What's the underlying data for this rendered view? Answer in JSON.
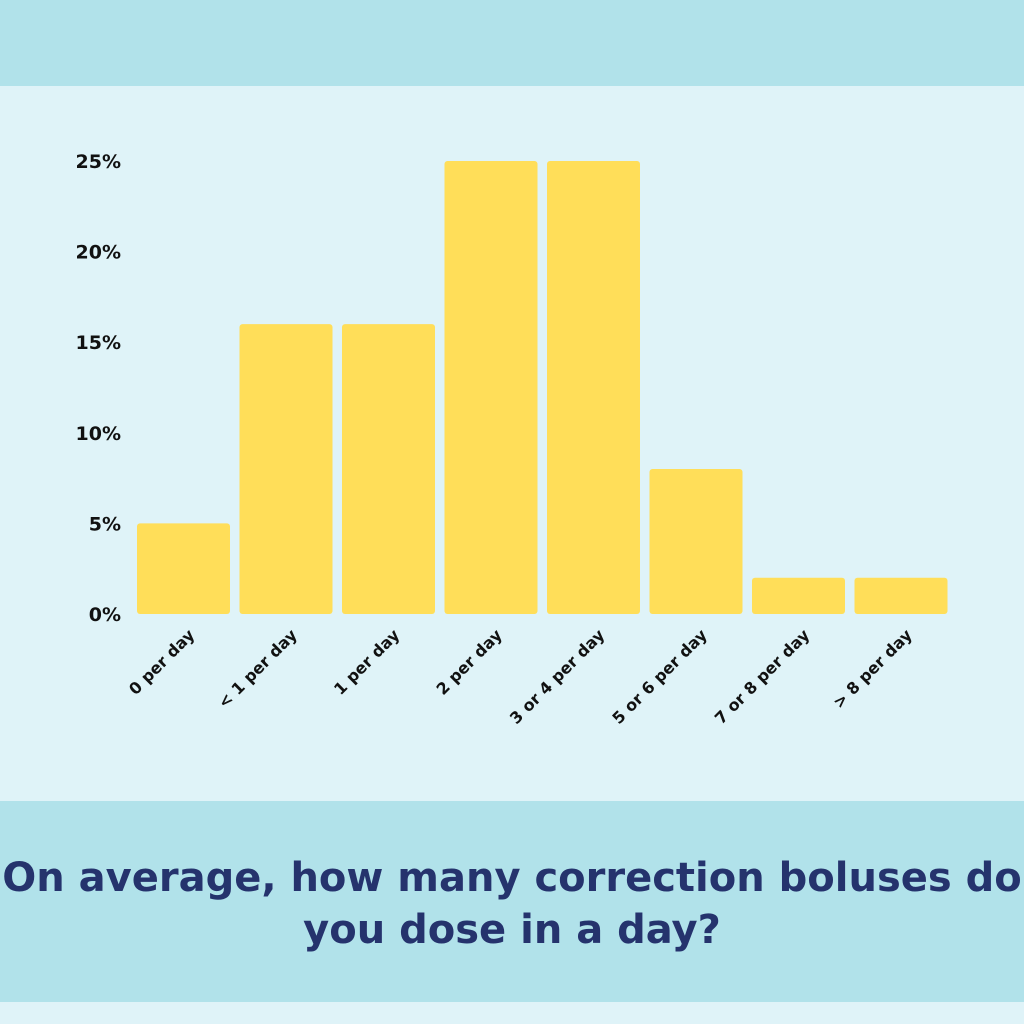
{
  "colors": {
    "background": "#dff3f8",
    "band": "#b1e2ea",
    "bar": "#ffde59",
    "title": "#25336d",
    "axis_text": "#111111"
  },
  "chart_data": {
    "type": "bar",
    "title": "On average, how many correction boluses do you dose in a day?",
    "xlabel": "",
    "ylabel": "",
    "categories": [
      "0 per day",
      "< 1 per day",
      "1 per day",
      "2 per day",
      "3 or 4 per day",
      "5 or 6 per day",
      "7 or 8 per day",
      "> 8 per day"
    ],
    "values": [
      5,
      16,
      16,
      25,
      25,
      8,
      2,
      2
    ],
    "ylim": [
      0,
      25
    ],
    "yticks": [
      0,
      5,
      10,
      15,
      20,
      25
    ],
    "ytick_labels": [
      "0%",
      "5%",
      "10%",
      "15%",
      "20%",
      "25%"
    ],
    "grid": false,
    "legend": "none"
  }
}
